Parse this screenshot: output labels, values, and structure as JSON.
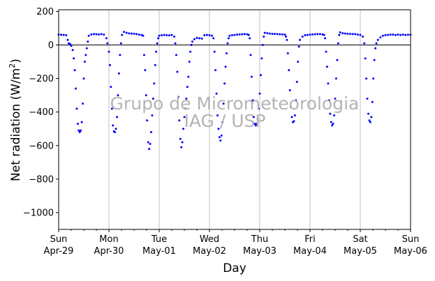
{
  "chart_data": {
    "type": "scatter",
    "title": "",
    "xlabel": "Day",
    "ylabel": "Net radiation (W/m",
    "ylabel_sup": "2",
    "ylabel_close": ")",
    "ylim": [
      -1100,
      210
    ],
    "y_ticks": [
      200,
      0,
      -200,
      -400,
      -600,
      -800,
      -1000
    ],
    "y_tick_labels": [
      "200",
      "0",
      "−200",
      "−400",
      "−600",
      "−800",
      "−1000"
    ],
    "xlim_days": [
      0,
      7
    ],
    "x_ticks": [
      {
        "day": "Sun",
        "date": "Apr-29"
      },
      {
        "day": "Mon",
        "date": "Apr-30"
      },
      {
        "day": "Tue",
        "date": "May-01"
      },
      {
        "day": "Wed",
        "date": "May-02"
      },
      {
        "day": "Thu",
        "date": "May-03"
      },
      {
        "day": "Fri",
        "date": "May-04"
      },
      {
        "day": "Sat",
        "date": "May-05"
      },
      {
        "day": "Sun",
        "date": "May-06"
      }
    ],
    "grid": "x-major",
    "zero_line": true,
    "series": [
      {
        "color": "#0000ff",
        "marker": "dot",
        "points": [
          [
            0.0,
            62
          ],
          [
            0.05,
            61
          ],
          [
            0.1,
            60
          ],
          [
            0.15,
            58
          ],
          [
            0.18,
            30
          ],
          [
            0.2,
            10
          ],
          [
            0.23,
            5
          ],
          [
            0.25,
            -5
          ],
          [
            0.28,
            -30
          ],
          [
            0.3,
            -80
          ],
          [
            0.32,
            -150
          ],
          [
            0.34,
            -260
          ],
          [
            0.36,
            -380
          ],
          [
            0.38,
            -470
          ],
          [
            0.4,
            -510
          ],
          [
            0.42,
            -520
          ],
          [
            0.44,
            -510
          ],
          [
            0.46,
            -460
          ],
          [
            0.48,
            -350
          ],
          [
            0.5,
            -200
          ],
          [
            0.52,
            -100
          ],
          [
            0.54,
            -60
          ],
          [
            0.56,
            -20
          ],
          [
            0.58,
            20
          ],
          [
            0.6,
            55
          ],
          [
            0.65,
            63
          ],
          [
            0.7,
            65
          ],
          [
            0.75,
            64
          ],
          [
            0.8,
            63
          ],
          [
            0.85,
            65
          ],
          [
            0.9,
            62
          ],
          [
            0.95,
            40
          ],
          [
            0.97,
            10
          ],
          [
            1.0,
            -40
          ],
          [
            1.02,
            -120
          ],
          [
            1.04,
            -250
          ],
          [
            1.06,
            -380
          ],
          [
            1.08,
            -480
          ],
          [
            1.1,
            -515
          ],
          [
            1.12,
            -520
          ],
          [
            1.14,
            -500
          ],
          [
            1.16,
            -430
          ],
          [
            1.18,
            -300
          ],
          [
            1.2,
            -170
          ],
          [
            1.22,
            -60
          ],
          [
            1.24,
            10
          ],
          [
            1.26,
            60
          ],
          [
            1.3,
            78
          ],
          [
            1.35,
            73
          ],
          [
            1.4,
            69
          ],
          [
            1.45,
            68
          ],
          [
            1.5,
            67
          ],
          [
            1.55,
            65
          ],
          [
            1.6,
            62
          ],
          [
            1.65,
            60
          ],
          [
            1.68,
            55
          ],
          [
            1.7,
            -60
          ],
          [
            1.72,
            -150
          ],
          [
            1.74,
            -300
          ],
          [
            1.76,
            -450
          ],
          [
            1.78,
            -580
          ],
          [
            1.8,
            -620
          ],
          [
            1.82,
            -590
          ],
          [
            1.84,
            -520
          ],
          [
            1.86,
            -420
          ],
          [
            1.88,
            -320
          ],
          [
            1.9,
            -230
          ],
          [
            1.92,
            -120
          ],
          [
            1.94,
            -40
          ],
          [
            1.96,
            10
          ],
          [
            1.98,
            40
          ],
          [
            2.0,
            55
          ],
          [
            2.05,
            58
          ],
          [
            2.1,
            60
          ],
          [
            2.15,
            58
          ],
          [
            2.2,
            57
          ],
          [
            2.25,
            60
          ],
          [
            2.3,
            50
          ],
          [
            2.32,
            10
          ],
          [
            2.34,
            -60
          ],
          [
            2.36,
            -160
          ],
          [
            2.38,
            -310
          ],
          [
            2.4,
            -450
          ],
          [
            2.42,
            -560
          ],
          [
            2.44,
            -610
          ],
          [
            2.46,
            -580
          ],
          [
            2.48,
            -500
          ],
          [
            2.5,
            -430
          ],
          [
            2.52,
            -380
          ],
          [
            2.54,
            -320
          ],
          [
            2.56,
            -250
          ],
          [
            2.58,
            -190
          ],
          [
            2.6,
            -100
          ],
          [
            2.62,
            -40
          ],
          [
            2.64,
            0
          ],
          [
            2.66,
            20
          ],
          [
            2.7,
            35
          ],
          [
            2.75,
            42
          ],
          [
            2.8,
            40
          ],
          [
            2.85,
            38
          ],
          [
            2.9,
            58
          ],
          [
            2.95,
            60
          ],
          [
            3.0,
            58
          ],
          [
            3.05,
            55
          ],
          [
            3.08,
            40
          ],
          [
            3.1,
            -40
          ],
          [
            3.12,
            -150
          ],
          [
            3.14,
            -290
          ],
          [
            3.16,
            -420
          ],
          [
            3.18,
            -500
          ],
          [
            3.2,
            -550
          ],
          [
            3.22,
            -570
          ],
          [
            3.24,
            -540
          ],
          [
            3.26,
            -460
          ],
          [
            3.28,
            -350
          ],
          [
            3.3,
            -230
          ],
          [
            3.32,
            -130
          ],
          [
            3.34,
            -50
          ],
          [
            3.36,
            10
          ],
          [
            3.38,
            40
          ],
          [
            3.4,
            55
          ],
          [
            3.45,
            58
          ],
          [
            3.5,
            60
          ],
          [
            3.55,
            62
          ],
          [
            3.6,
            63
          ],
          [
            3.65,
            64
          ],
          [
            3.7,
            65
          ],
          [
            3.75,
            64
          ],
          [
            3.78,
            60
          ],
          [
            3.8,
            40
          ],
          [
            3.82,
            -60
          ],
          [
            3.84,
            -190
          ],
          [
            3.86,
            -330
          ],
          [
            3.88,
            -430
          ],
          [
            3.9,
            -470
          ],
          [
            3.92,
            -480
          ],
          [
            3.94,
            -470
          ],
          [
            3.96,
            -440
          ],
          [
            3.98,
            -380
          ],
          [
            4.0,
            -290
          ],
          [
            4.02,
            -180
          ],
          [
            4.04,
            -80
          ],
          [
            4.06,
            0
          ],
          [
            4.08,
            50
          ],
          [
            4.1,
            72
          ],
          [
            4.15,
            70
          ],
          [
            4.2,
            68
          ],
          [
            4.25,
            66
          ],
          [
            4.3,
            66
          ],
          [
            4.35,
            65
          ],
          [
            4.4,
            64
          ],
          [
            4.45,
            63
          ],
          [
            4.5,
            62
          ],
          [
            4.52,
            50
          ],
          [
            4.54,
            30
          ],
          [
            4.56,
            -50
          ],
          [
            4.58,
            -150
          ],
          [
            4.6,
            -270
          ],
          [
            4.62,
            -370
          ],
          [
            4.64,
            -430
          ],
          [
            4.66,
            -460
          ],
          [
            4.68,
            -455
          ],
          [
            4.7,
            -420
          ],
          [
            4.72,
            -330
          ],
          [
            4.74,
            -220
          ],
          [
            4.76,
            -100
          ],
          [
            4.78,
            -10
          ],
          [
            4.8,
            30
          ],
          [
            4.85,
            50
          ],
          [
            4.9,
            58
          ],
          [
            4.95,
            60
          ],
          [
            5.0,
            62
          ],
          [
            5.05,
            63
          ],
          [
            5.1,
            64
          ],
          [
            5.15,
            65
          ],
          [
            5.2,
            65
          ],
          [
            5.25,
            63
          ],
          [
            5.28,
            60
          ],
          [
            5.3,
            40
          ],
          [
            5.32,
            -40
          ],
          [
            5.34,
            -130
          ],
          [
            5.36,
            -230
          ],
          [
            5.38,
            -330
          ],
          [
            5.4,
            -410
          ],
          [
            5.42,
            -460
          ],
          [
            5.44,
            -480
          ],
          [
            5.46,
            -470
          ],
          [
            5.48,
            -420
          ],
          [
            5.5,
            -320
          ],
          [
            5.52,
            -200
          ],
          [
            5.54,
            -90
          ],
          [
            5.56,
            10
          ],
          [
            5.58,
            60
          ],
          [
            5.6,
            75
          ],
          [
            5.65,
            70
          ],
          [
            5.7,
            68
          ],
          [
            5.75,
            67
          ],
          [
            5.8,
            66
          ],
          [
            5.85,
            65
          ],
          [
            5.9,
            65
          ],
          [
            5.95,
            62
          ],
          [
            6.0,
            60
          ],
          [
            6.05,
            50
          ],
          [
            6.08,
            10
          ],
          [
            6.1,
            -80
          ],
          [
            6.12,
            -200
          ],
          [
            6.14,
            -320
          ],
          [
            6.16,
            -410
          ],
          [
            6.18,
            -450
          ],
          [
            6.2,
            -460
          ],
          [
            6.22,
            -430
          ],
          [
            6.24,
            -340
          ],
          [
            6.26,
            -200
          ],
          [
            6.28,
            -90
          ],
          [
            6.3,
            -20
          ],
          [
            6.32,
            10
          ],
          [
            6.35,
            30
          ],
          [
            6.4,
            45
          ],
          [
            6.45,
            55
          ],
          [
            6.5,
            58
          ],
          [
            6.55,
            60
          ],
          [
            6.6,
            62
          ],
          [
            6.65,
            62
          ],
          [
            6.7,
            60
          ],
          [
            6.75,
            62
          ],
          [
            6.8,
            60
          ],
          [
            6.85,
            62
          ],
          [
            6.9,
            60
          ],
          [
            6.95,
            61
          ],
          [
            7.0,
            61
          ]
        ]
      }
    ],
    "watermark_line1": "Grupo de Micrometeorologia",
    "watermark_line2": "IAG / USP"
  }
}
